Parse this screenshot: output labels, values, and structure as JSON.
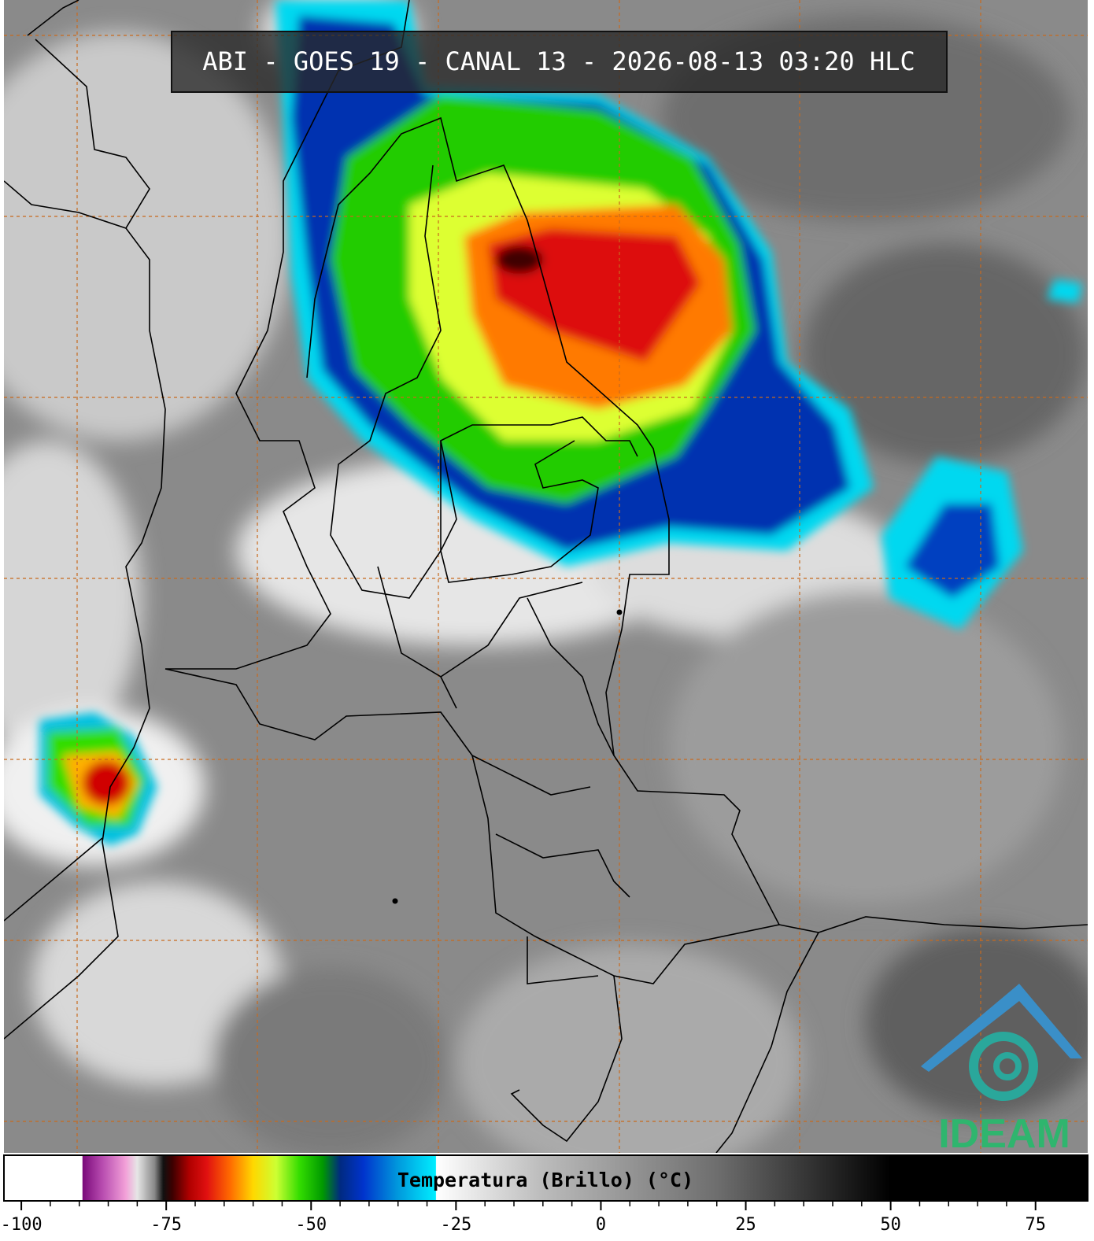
{
  "header": {
    "title": "ABI - GOES 19 - CANAL 13 - 2026-08-13 03:20 HLC"
  },
  "colorbar": {
    "label": "Temperatura (Brillo) (°C)",
    "vlim": [
      -103,
      84
    ],
    "ticks": [
      -100,
      -75,
      -50,
      -25,
      0,
      25,
      50,
      75
    ],
    "stops": [
      [
        -103,
        "#ffffff"
      ],
      [
        -89.5,
        "#ffffff"
      ],
      [
        -89.4,
        "#7a0a7a"
      ],
      [
        -86,
        "#b84cb0"
      ],
      [
        -82,
        "#f2a0d8"
      ],
      [
        -80,
        "#e6e6e6"
      ],
      [
        -77,
        "#888888"
      ],
      [
        -75.5,
        "#111111"
      ],
      [
        -74,
        "#3a0000"
      ],
      [
        -71,
        "#b00000"
      ],
      [
        -68,
        "#e01010"
      ],
      [
        -64,
        "#ff6a00"
      ],
      [
        -60,
        "#ffd800"
      ],
      [
        -56,
        "#ccff33"
      ],
      [
        -52,
        "#33dd00"
      ],
      [
        -48,
        "#009900"
      ],
      [
        -45,
        "#002a80"
      ],
      [
        -41,
        "#0033cc"
      ],
      [
        -35,
        "#0099dd"
      ],
      [
        -28.5,
        "#00eeff"
      ],
      [
        -28.4,
        "#ffffff"
      ],
      [
        -10,
        "#bbbbbb"
      ],
      [
        20,
        "#6e6e6e"
      ],
      [
        50,
        "#000000"
      ],
      [
        84,
        "#000000"
      ]
    ]
  },
  "logo": {
    "text": "IDEAM"
  }
}
